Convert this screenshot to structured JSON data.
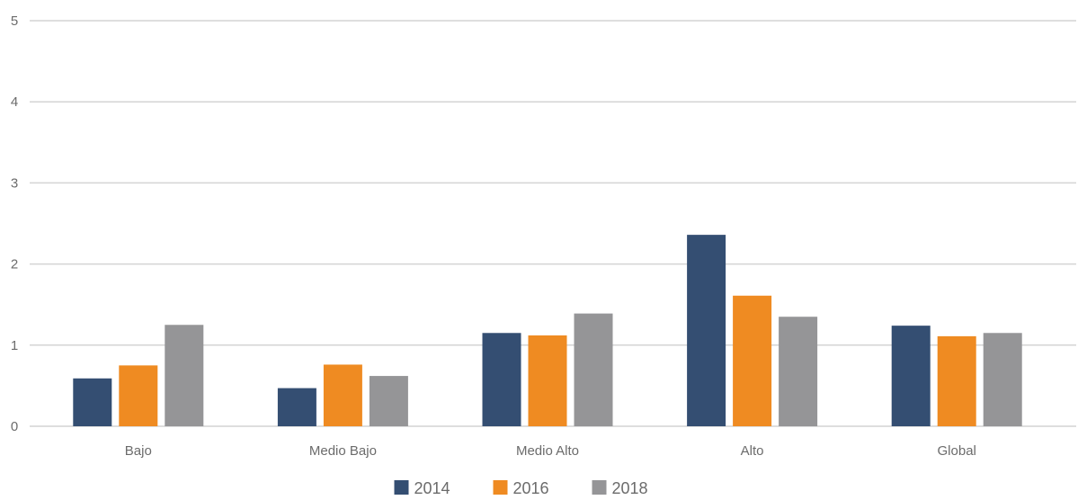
{
  "chart_data": {
    "type": "bar",
    "title": "",
    "xlabel": "",
    "ylabel": "",
    "ylim": [
      0,
      5
    ],
    "yticks": [
      "0",
      "1",
      "2",
      "3",
      "4",
      "5"
    ],
    "grid": true,
    "legend_position": "bottom-center",
    "categories": [
      "Bajo",
      "Medio Bajo",
      "Medio Alto",
      "Alto",
      "Global"
    ],
    "series": [
      {
        "name": "2014",
        "color": "#344e72",
        "values": [
          0.59,
          0.47,
          1.15,
          2.36,
          1.24
        ]
      },
      {
        "name": "2016",
        "color": "#ef8b22",
        "values": [
          0.75,
          0.76,
          1.12,
          1.61,
          1.11
        ]
      },
      {
        "name": "2018",
        "color": "#959597",
        "values": [
          1.25,
          0.62,
          1.39,
          1.35,
          1.15
        ]
      }
    ]
  }
}
